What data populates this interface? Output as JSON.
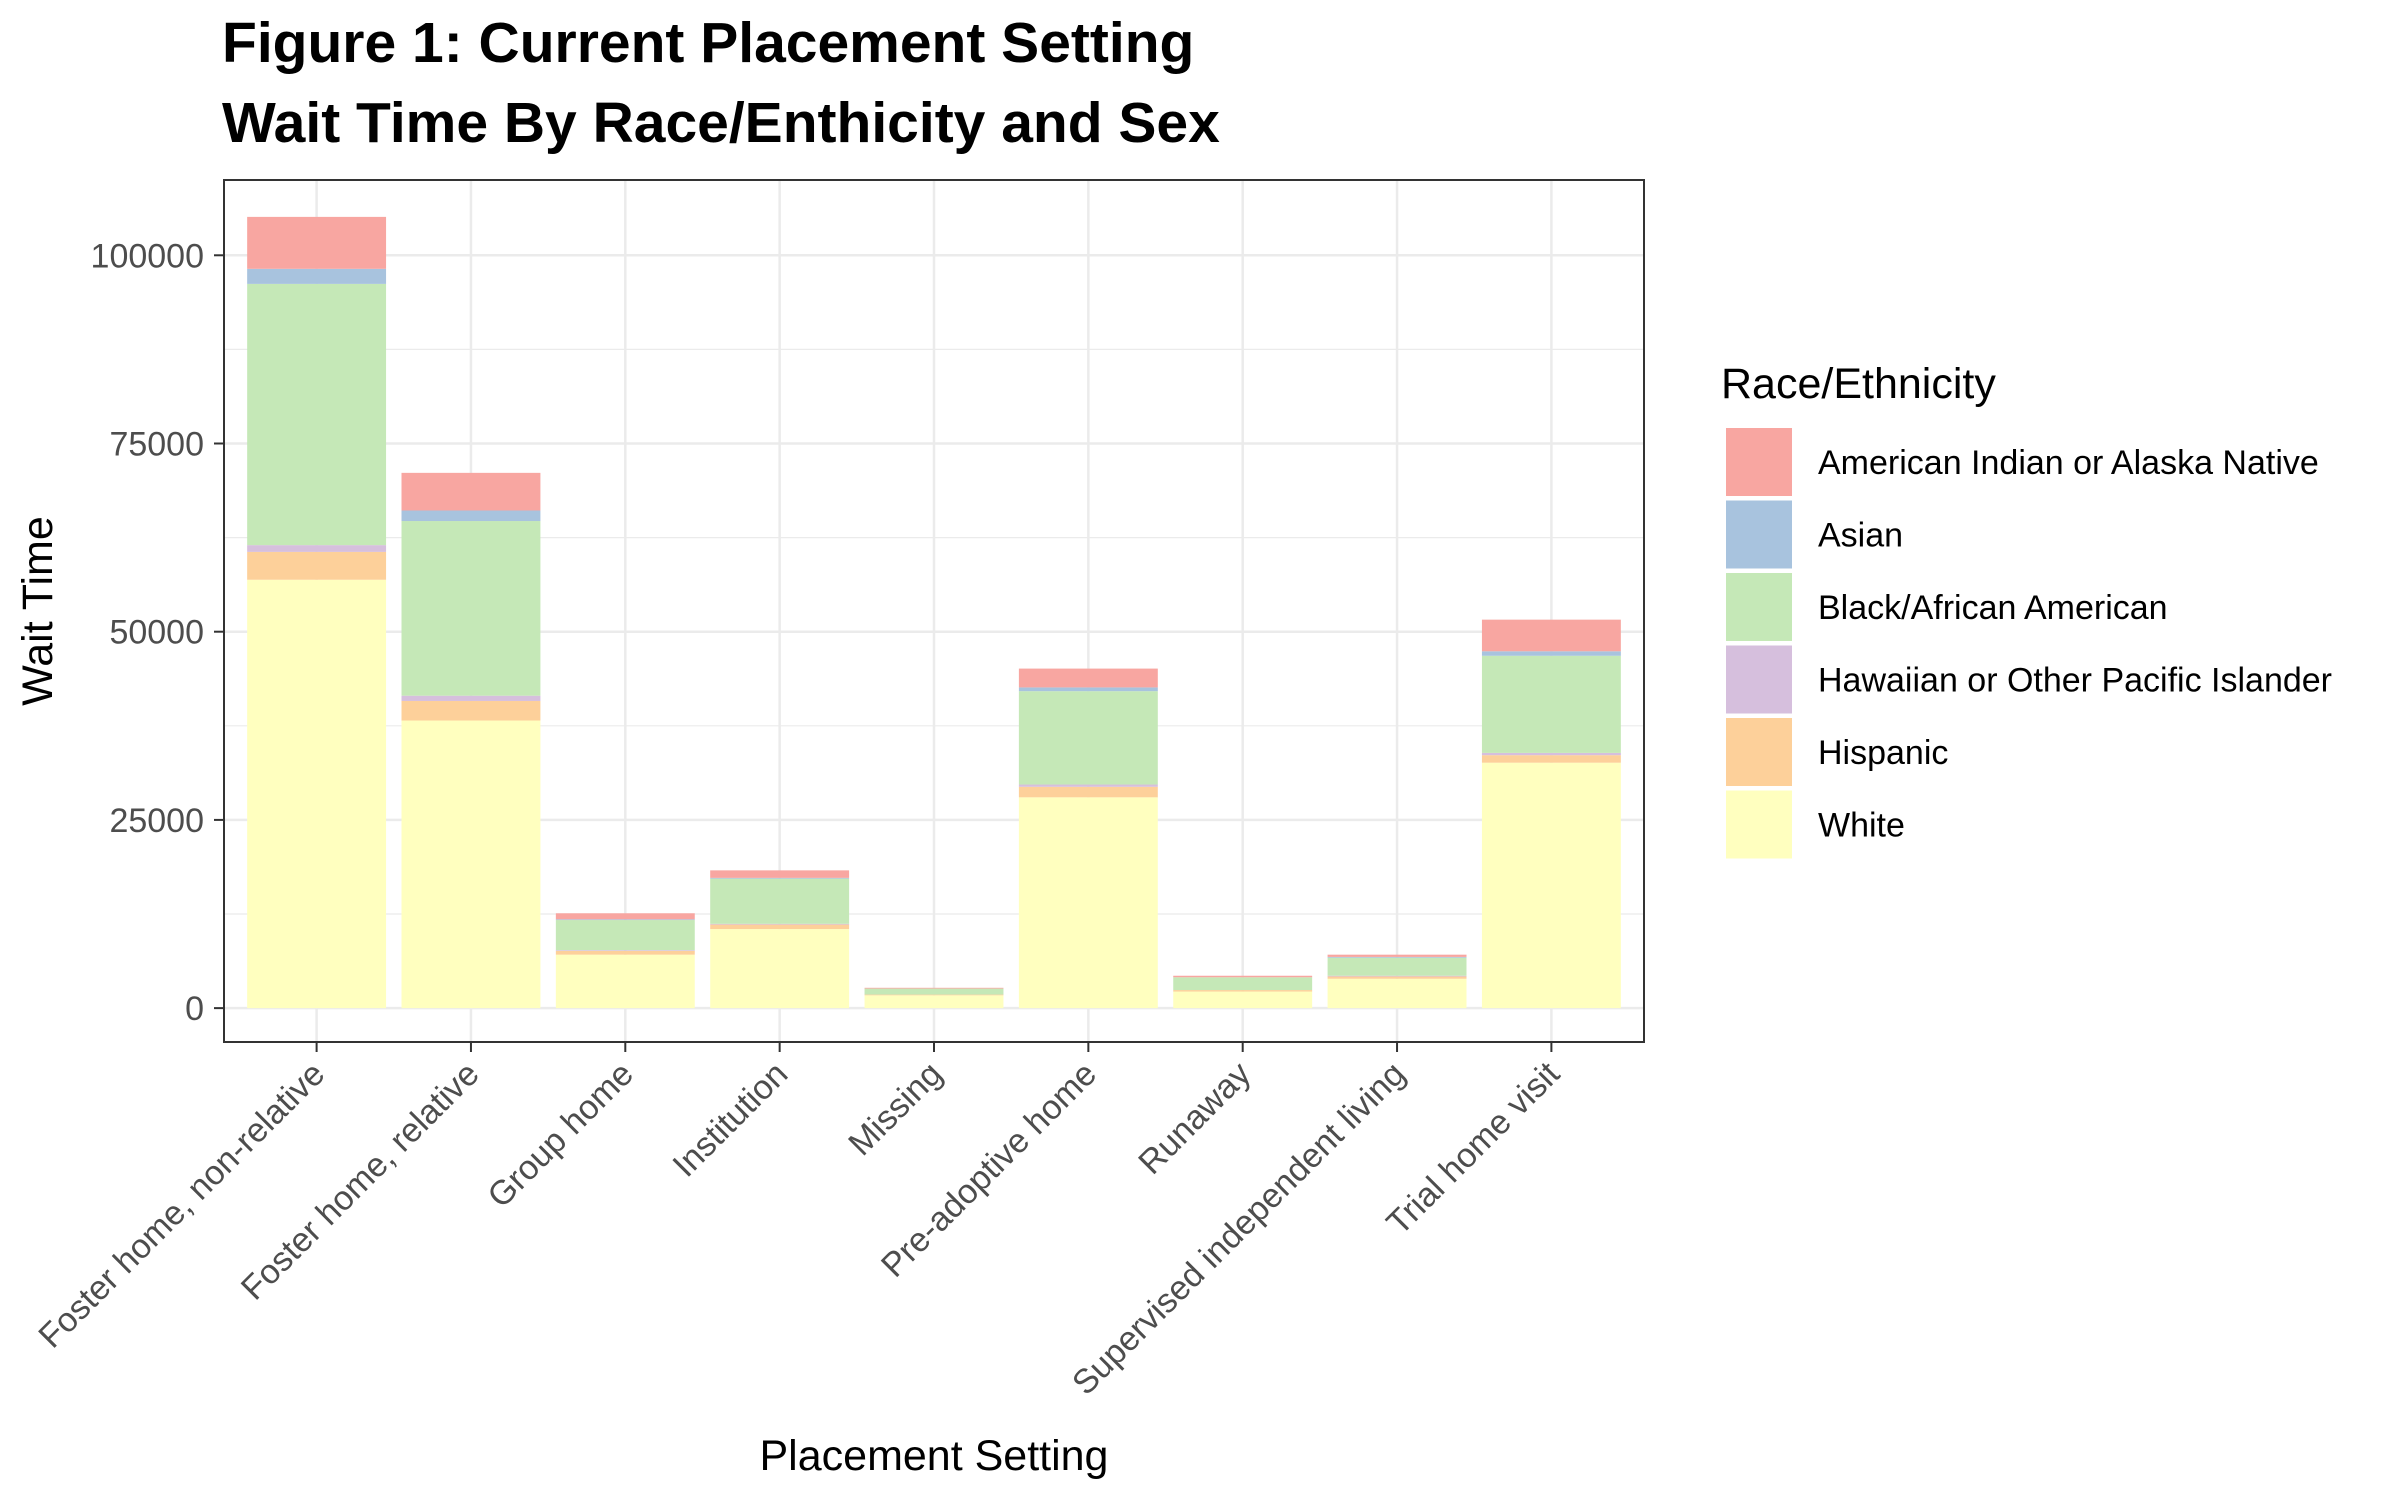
{
  "chart_data": {
    "type": "bar",
    "stacked": true,
    "title": "Figure 1: Current Placement Setting",
    "subtitle": "Wait Time By Race/Enthicity and Sex",
    "xlabel": "Placement Setting",
    "ylabel": "Wait Time",
    "ylim": [
      -4500,
      110000
    ],
    "yticks": [
      0,
      25000,
      50000,
      75000,
      100000
    ],
    "grid": true,
    "legend_title": "Race/Ethnicity",
    "legend_position": "right",
    "categories": [
      "Foster home, non-relative",
      "Foster home, relative",
      "Group home",
      "Institution",
      "Missing",
      "Pre-adoptive home",
      "Runaway",
      "Supervised independent living",
      "Trial home visit"
    ],
    "series": [
      {
        "name": "White",
        "color": "#FFFFBF",
        "values": [
          56900,
          38200,
          7100,
          10500,
          1700,
          28000,
          2200,
          3900,
          32600
        ]
      },
      {
        "name": "Hispanic",
        "color": "#FDD09A",
        "values": [
          3700,
          2600,
          500,
          600,
          100,
          1400,
          200,
          300,
          1000
        ]
      },
      {
        "name": "Hawaiian or Other Pacific Islander",
        "color": "#D6BFDD",
        "values": [
          900,
          700,
          100,
          100,
          0,
          300,
          0,
          100,
          300
        ]
      },
      {
        "name": "Black/African American",
        "color": "#C5E8B7",
        "values": [
          34700,
          23200,
          4000,
          6000,
          800,
          12400,
          1700,
          2400,
          12900
        ]
      },
      {
        "name": "Asian",
        "color": "#A8C3DE",
        "values": [
          2000,
          1400,
          100,
          100,
          0,
          500,
          0,
          100,
          600
        ]
      },
      {
        "name": "American Indian or Alaska Native",
        "color": "#F8A6A1",
        "values": [
          6900,
          5000,
          800,
          1000,
          100,
          2500,
          200,
          300,
          4200
        ]
      }
    ]
  }
}
